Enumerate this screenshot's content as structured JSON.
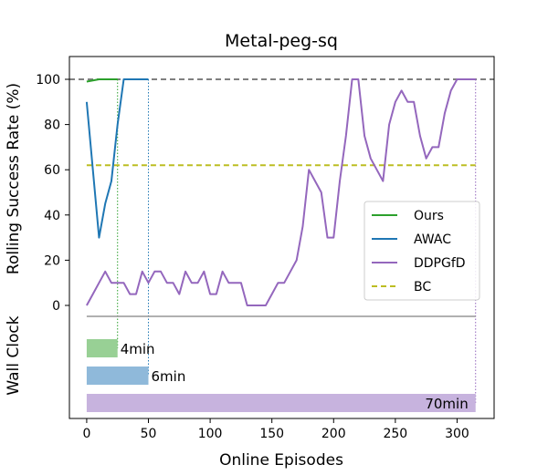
{
  "chart_data": {
    "type": "line",
    "title": "Metal-peg-sq",
    "xlabel": "Online Episodes",
    "ylabel": "Rolling Success Rate (%)",
    "wall_clock_label": "Wall Clock",
    "xlim": [
      -14,
      330
    ],
    "ylim": [
      0,
      110
    ],
    "xticks": [
      0,
      50,
      100,
      150,
      200,
      250,
      300
    ],
    "yticks": [
      0,
      20,
      40,
      60,
      80,
      100
    ],
    "grid": false,
    "legend_position": "center-right",
    "reference_line": {
      "y": 100,
      "style": "dashed",
      "color": "#808080"
    },
    "series": [
      {
        "name": "Ours",
        "color": "#2ca02c",
        "style": "solid",
        "points": [
          [
            0,
            99
          ],
          [
            5,
            99.5
          ],
          [
            10,
            100
          ],
          [
            15,
            100
          ],
          [
            20,
            100
          ],
          [
            25,
            100
          ]
        ]
      },
      {
        "name": "AWAC",
        "color": "#1f77b4",
        "style": "solid",
        "points": [
          [
            0,
            90
          ],
          [
            5,
            60
          ],
          [
            10,
            30
          ],
          [
            15,
            45
          ],
          [
            20,
            55
          ],
          [
            25,
            80
          ],
          [
            30,
            100
          ],
          [
            35,
            100
          ],
          [
            40,
            100
          ],
          [
            45,
            100
          ],
          [
            50,
            100
          ]
        ]
      },
      {
        "name": "DDPGfD",
        "color": "#9467bd",
        "style": "solid",
        "points": [
          [
            0,
            0
          ],
          [
            5,
            5
          ],
          [
            10,
            10
          ],
          [
            15,
            15
          ],
          [
            20,
            10
          ],
          [
            25,
            10
          ],
          [
            30,
            10
          ],
          [
            35,
            5
          ],
          [
            40,
            5
          ],
          [
            45,
            15
          ],
          [
            50,
            10
          ],
          [
            55,
            15
          ],
          [
            60,
            15
          ],
          [
            65,
            10
          ],
          [
            70,
            10
          ],
          [
            75,
            5
          ],
          [
            80,
            15
          ],
          [
            85,
            10
          ],
          [
            90,
            10
          ],
          [
            95,
            15
          ],
          [
            100,
            5
          ],
          [
            105,
            5
          ],
          [
            110,
            15
          ],
          [
            115,
            10
          ],
          [
            120,
            10
          ],
          [
            125,
            10
          ],
          [
            130,
            0
          ],
          [
            135,
            0
          ],
          [
            140,
            0
          ],
          [
            145,
            0
          ],
          [
            150,
            5
          ],
          [
            155,
            10
          ],
          [
            160,
            10
          ],
          [
            165,
            15
          ],
          [
            170,
            20
          ],
          [
            175,
            35
          ],
          [
            180,
            60
          ],
          [
            185,
            55
          ],
          [
            190,
            50
          ],
          [
            195,
            30
          ],
          [
            200,
            30
          ],
          [
            205,
            55
          ],
          [
            210,
            75
          ],
          [
            215,
            100
          ],
          [
            220,
            100
          ],
          [
            225,
            75
          ],
          [
            230,
            65
          ],
          [
            235,
            60
          ],
          [
            240,
            55
          ],
          [
            245,
            80
          ],
          [
            250,
            90
          ],
          [
            255,
            95
          ],
          [
            260,
            90
          ],
          [
            265,
            90
          ],
          [
            270,
            75
          ],
          [
            275,
            65
          ],
          [
            280,
            70
          ],
          [
            285,
            70
          ],
          [
            290,
            85
          ],
          [
            295,
            95
          ],
          [
            300,
            100
          ],
          [
            305,
            100
          ],
          [
            310,
            100
          ],
          [
            315,
            100
          ]
        ]
      },
      {
        "name": "BC",
        "color": "#bcbd22",
        "style": "dashed",
        "points": [
          [
            0,
            62
          ],
          [
            315,
            62
          ]
        ]
      }
    ],
    "completion_markers": [
      {
        "series": "Ours",
        "episode": 25
      },
      {
        "series": "AWAC",
        "episode": 50
      },
      {
        "series": "DDPGfD",
        "episode": 315
      }
    ],
    "wall_clock_bars": [
      {
        "series": "Ours",
        "episode_end": 25,
        "label": "4min",
        "color": "#98d095"
      },
      {
        "series": "AWAC",
        "episode_end": 50,
        "label": "6min",
        "color": "#8fb9da"
      },
      {
        "series": "DDPGfD",
        "episode_end": 315,
        "label": "70min",
        "color": "#c7b3de"
      }
    ]
  }
}
